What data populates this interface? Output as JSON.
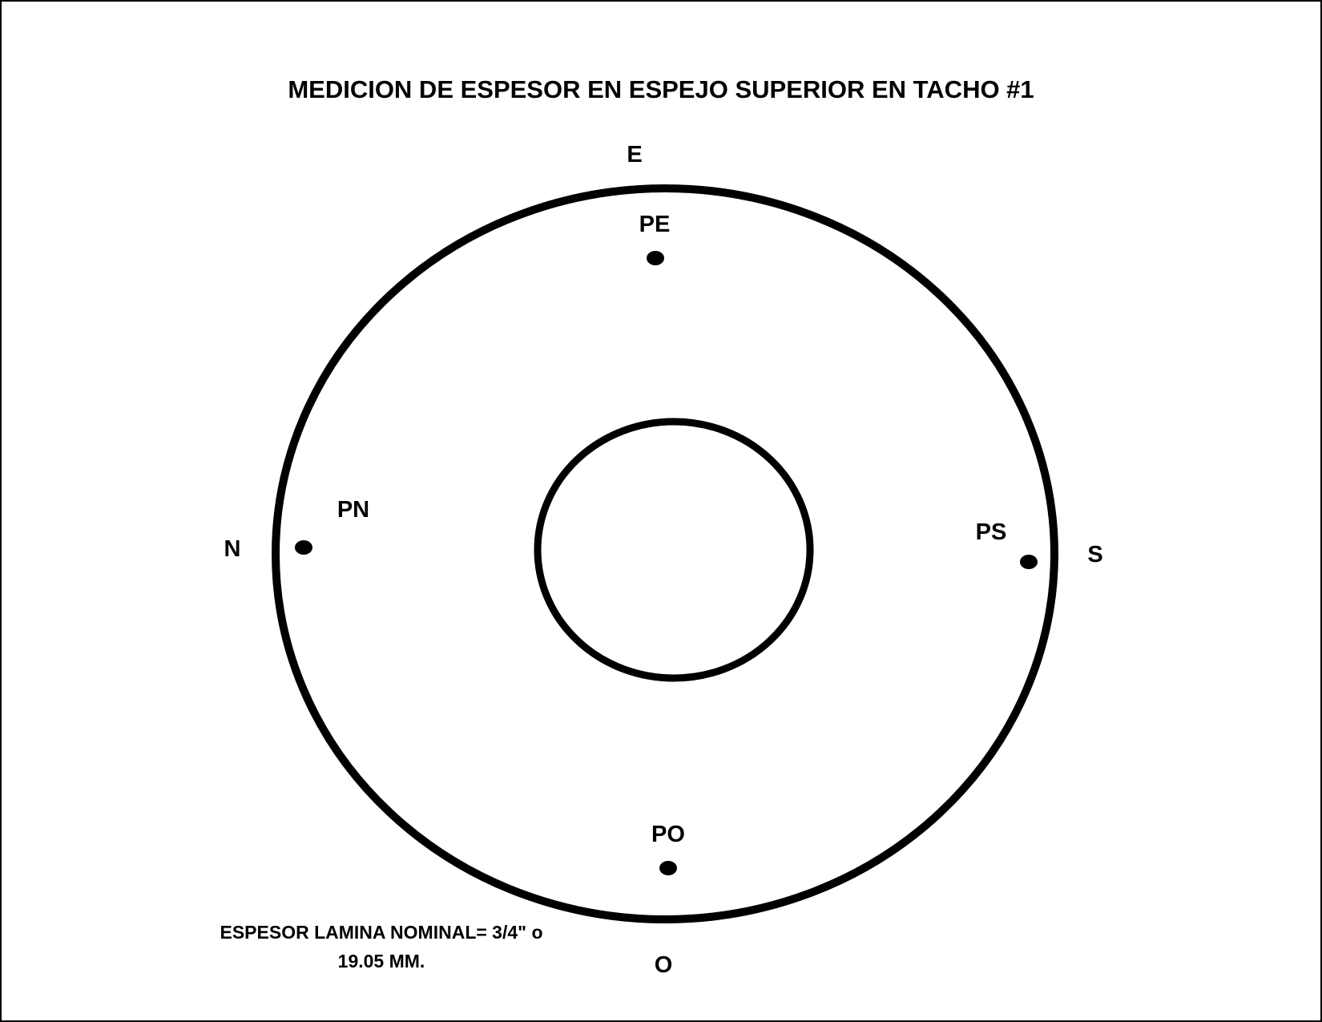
{
  "title": "MEDICION DE ESPESOR EN ESPEJO SUPERIOR EN TACHO #1",
  "directions": {
    "east": "E",
    "north": "N",
    "south": "S",
    "west": "O"
  },
  "points": {
    "east": "PE",
    "north": "PN",
    "south": "PS",
    "west": "PO"
  },
  "note": {
    "line1": "ESPESOR LAMINA NOMINAL= 3/4\" o",
    "line2": "19.05 MM."
  },
  "colors": {
    "stroke": "#000000",
    "background": "#ffffff"
  }
}
